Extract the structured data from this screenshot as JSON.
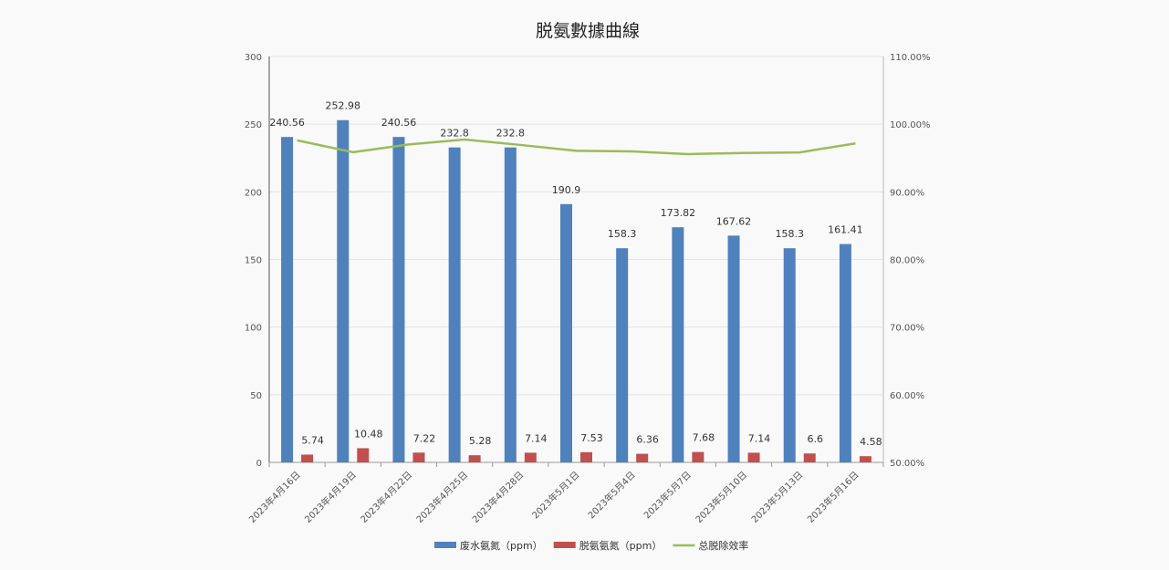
{
  "chart_data": {
    "type": "bar",
    "title": "脱氨數據曲線",
    "categories": [
      "2023年4月16日",
      "2023年4月19日",
      "2023年4月22日",
      "2023年4月25日",
      "2023年4月28日",
      "2023年5月1日",
      "2023年5月4日",
      "2023年5月7日",
      "2023年5月10日",
      "2023年5月13日",
      "2023年5月16日"
    ],
    "y_left": {
      "min": 0,
      "max": 300,
      "ticks": [
        "0",
        "50",
        "100",
        "150",
        "200",
        "250",
        "300"
      ]
    },
    "y_right": {
      "min": 0.5,
      "max": 1.1,
      "ticks": [
        "50.00%",
        "60.00%",
        "70.00%",
        "80.00%",
        "90.00%",
        "100.00%",
        "110.00%"
      ]
    },
    "grid": true,
    "legend_position": "bottom",
    "series": [
      {
        "name": "废水氨氮（ppm）",
        "type": "bar",
        "axis": "left",
        "color": "#4f81bd",
        "values": [
          240.56,
          252.98,
          240.56,
          232.8,
          232.8,
          190.9,
          158.3,
          173.82,
          167.62,
          158.3,
          161.41
        ],
        "labels": [
          "240.56",
          "252.98",
          "240.56",
          "232.8",
          "232.8",
          "190.9",
          "158.3",
          "173.82",
          "167.62",
          "158.3",
          "161.41"
        ]
      },
      {
        "name": "脱氨氨氮（ppm）",
        "type": "bar",
        "axis": "left",
        "color": "#c0504d",
        "values": [
          5.74,
          10.48,
          7.22,
          5.28,
          7.14,
          7.53,
          6.36,
          7.68,
          7.14,
          6.6,
          4.58
        ],
        "labels": [
          "5.74",
          "10.48",
          "7.22",
          "5.28",
          "7.14",
          "7.53",
          "6.36",
          "7.68",
          "7.14",
          "6.6",
          "4.58"
        ]
      },
      {
        "name": "总脱除效率",
        "type": "line",
        "axis": "right",
        "color": "#9bbb59",
        "values": [
          0.9761,
          0.9586,
          0.97,
          0.9773,
          0.9693,
          0.9606,
          0.9598,
          0.9558,
          0.9574,
          0.9583,
          0.9716
        ]
      }
    ]
  }
}
